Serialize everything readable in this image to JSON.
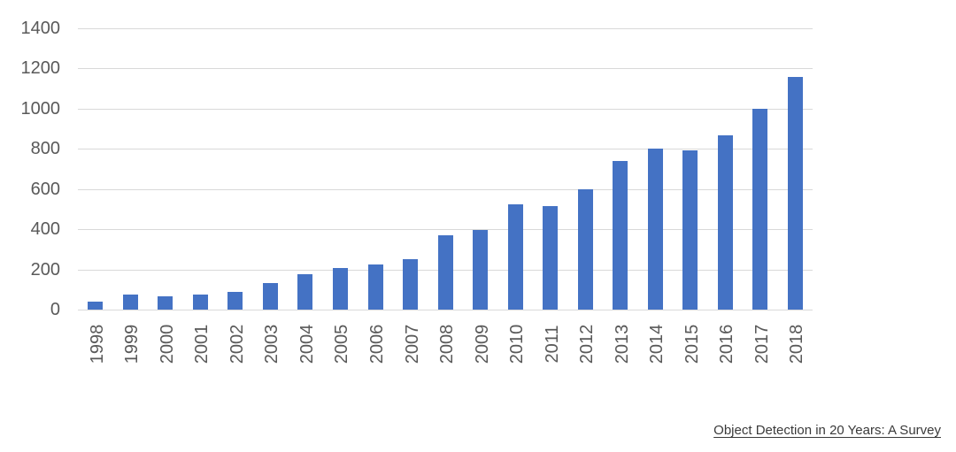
{
  "caption": {
    "text": "Object Detection in 20 Years: A Survey"
  },
  "chart_data": {
    "type": "bar",
    "title": "",
    "xlabel": "",
    "ylabel": "",
    "categories": [
      "1998",
      "1999",
      "2000",
      "2001",
      "2002",
      "2003",
      "2004",
      "2005",
      "2006",
      "2007",
      "2008",
      "2009",
      "2010",
      "2011",
      "2012",
      "2013",
      "2014",
      "2015",
      "2016",
      "2017",
      "2018"
    ],
    "values": [
      40,
      75,
      65,
      73,
      90,
      130,
      175,
      205,
      225,
      250,
      370,
      395,
      525,
      515,
      600,
      740,
      800,
      790,
      865,
      1000,
      1155
    ],
    "ylim": [
      0,
      1400
    ],
    "ytick_step": 200,
    "yticks": [
      0,
      200,
      400,
      600,
      800,
      1000,
      1200,
      1400
    ],
    "grid": true,
    "legend_position": "none",
    "bar_color": "#4472C4",
    "gridline_color": "#d9d9d9",
    "tick_label_color": "#595959"
  }
}
